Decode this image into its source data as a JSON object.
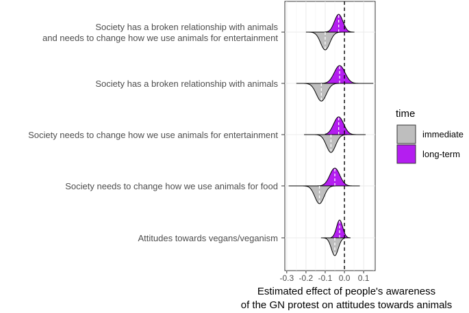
{
  "chart_data": {
    "type": "area",
    "categories": [
      "Society has a broken relationship with animals\nand needs to change how we use animals for entertainment",
      "Society has a broken relationship with animals",
      "Society needs to change how we use animals for entertainment",
      "Society needs to change how we use animals for food",
      "Attitudes towards vegans/veganism"
    ],
    "xlabel": "Estimated effect of people's awareness\nof the GN protest on attitudes towards animals",
    "xlim": [
      -0.31,
      0.16
    ],
    "xticks": [
      "-0.3",
      "-0.2",
      "-0.1",
      "0.0",
      "0.1"
    ],
    "reference_line_x": 0.0,
    "grid": true,
    "legend": {
      "title": "time",
      "placement": "right",
      "entries": [
        {
          "name": "immediate",
          "color": "#bebebe"
        },
        {
          "name": "long-term",
          "color": "#b41ef0"
        }
      ]
    },
    "series": [
      {
        "name": "long-term",
        "side": "up",
        "color": "#b41ef0",
        "distributions": [
          {
            "mean": -0.03,
            "sd": 0.022,
            "min": -0.1,
            "max": 0.05
          },
          {
            "mean": -0.025,
            "sd": 0.028,
            "min": -0.13,
            "max": 0.15
          },
          {
            "mean": -0.03,
            "sd": 0.026,
            "min": -0.1,
            "max": 0.1
          },
          {
            "mean": -0.05,
            "sd": 0.026,
            "min": -0.2,
            "max": 0.08
          },
          {
            "mean": -0.025,
            "sd": 0.016,
            "min": -0.07,
            "max": 0.03
          }
        ]
      },
      {
        "name": "immediate",
        "side": "down",
        "color": "#bebebe",
        "distributions": [
          {
            "mean": -0.1,
            "sd": 0.024,
            "min": -0.2,
            "max": 0.01
          },
          {
            "mean": -0.12,
            "sd": 0.026,
            "min": -0.25,
            "max": 0.0
          },
          {
            "mean": -0.07,
            "sd": 0.024,
            "min": -0.21,
            "max": 0.11
          },
          {
            "mean": -0.13,
            "sd": 0.024,
            "min": -0.29,
            "max": 0.0
          },
          {
            "mean": -0.05,
            "sd": 0.018,
            "min": -0.12,
            "max": 0.0
          }
        ]
      }
    ]
  }
}
